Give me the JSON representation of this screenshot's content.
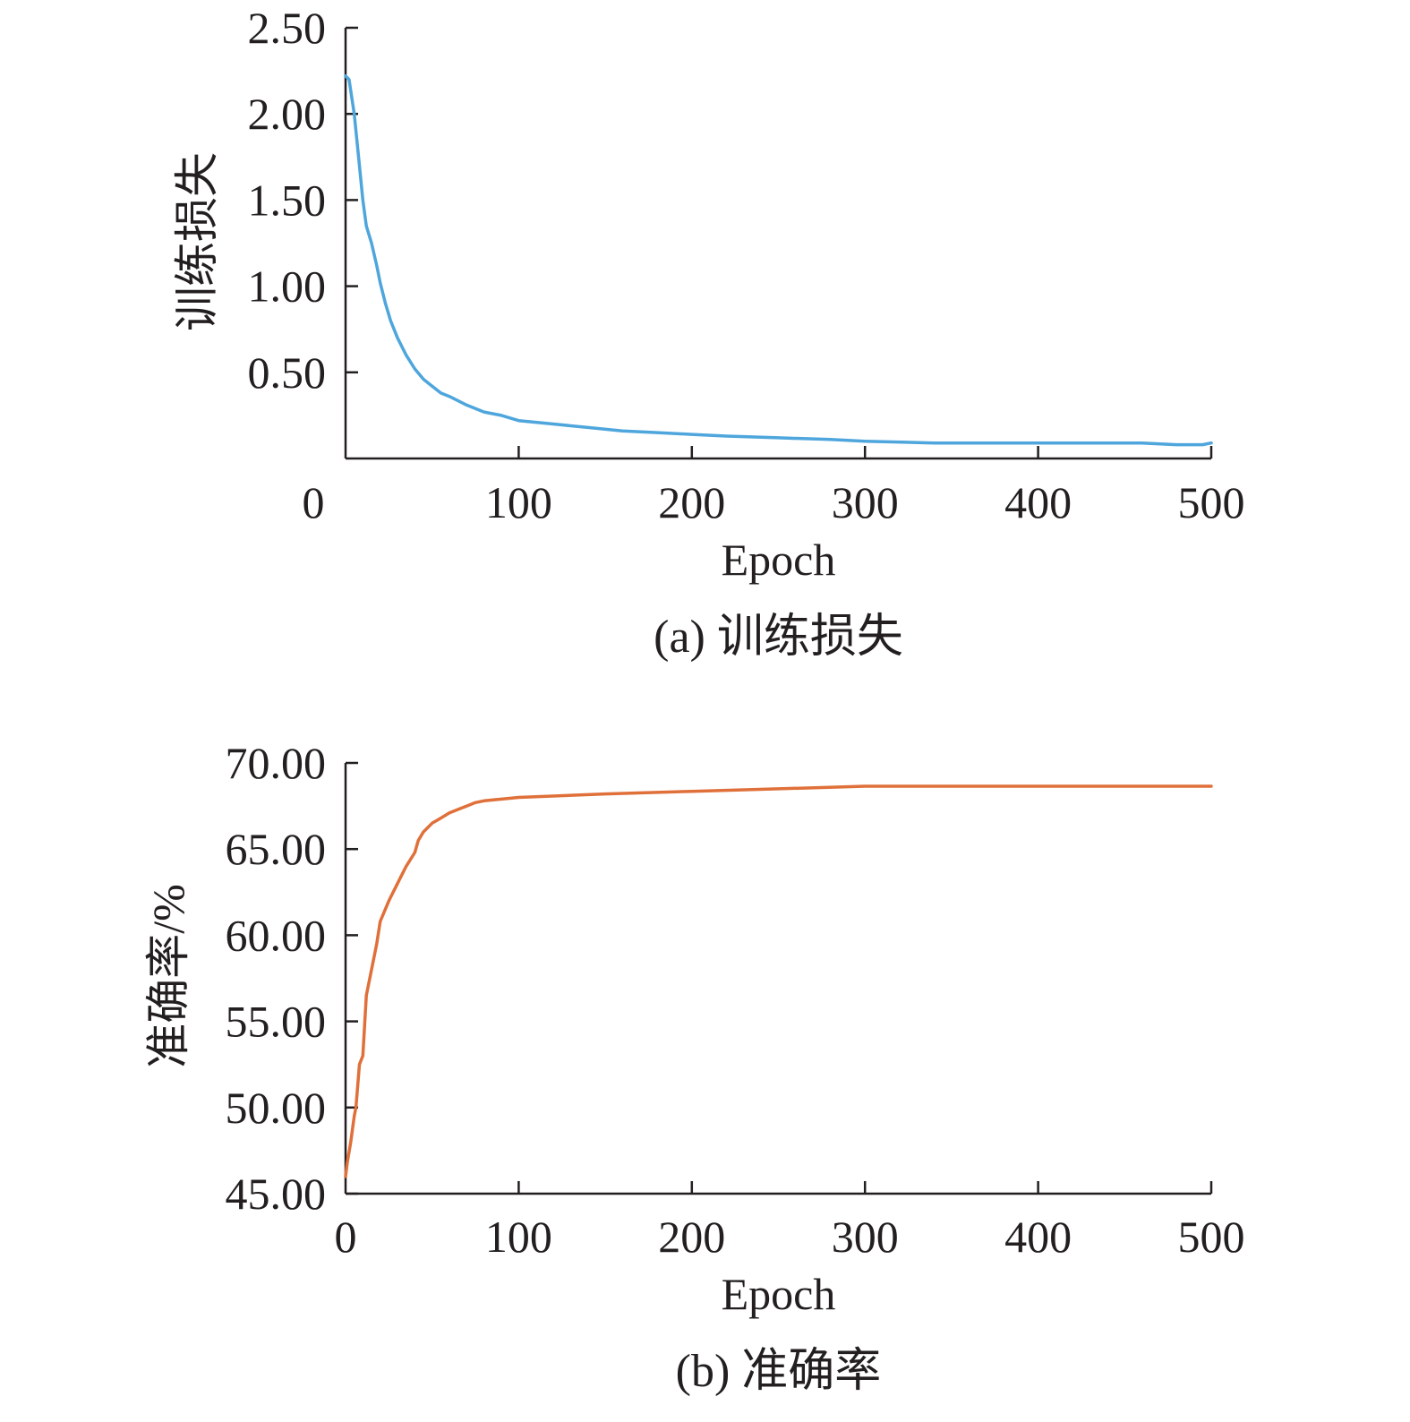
{
  "chart_data": [
    {
      "type": "line",
      "caption": "(a) 训练损失",
      "xlabel": "Epoch",
      "ylabel": "训练损失",
      "xlim": [
        0,
        500
      ],
      "ylim": [
        0,
        2.5
      ],
      "x_ticks": [
        "0",
        "100",
        "200",
        "300",
        "400",
        "500"
      ],
      "y_ticks": [
        "0.50",
        "1.00",
        "1.50",
        "2.00",
        "2.50"
      ],
      "grid": false,
      "series": [
        {
          "color": "#4ea6dc",
          "x": [
            0,
            2,
            5,
            8,
            10,
            12,
            15,
            18,
            20,
            23,
            26,
            30,
            35,
            40,
            45,
            50,
            55,
            60,
            70,
            80,
            90,
            100,
            120,
            140,
            160,
            180,
            200,
            220,
            250,
            280,
            300,
            340,
            380,
            420,
            460,
            480,
            495,
            500
          ],
          "y": [
            2.22,
            2.2,
            2.0,
            1.7,
            1.5,
            1.35,
            1.25,
            1.12,
            1.02,
            0.9,
            0.8,
            0.7,
            0.6,
            0.52,
            0.46,
            0.42,
            0.38,
            0.36,
            0.31,
            0.27,
            0.25,
            0.22,
            0.2,
            0.18,
            0.16,
            0.15,
            0.14,
            0.13,
            0.12,
            0.11,
            0.1,
            0.09,
            0.09,
            0.09,
            0.09,
            0.08,
            0.08,
            0.09
          ]
        }
      ]
    },
    {
      "type": "line",
      "caption": "(b) 准确率",
      "xlabel": "Epoch",
      "ylabel": "准确率/%",
      "xlim": [
        0,
        500
      ],
      "ylim": [
        45,
        70
      ],
      "x_ticks": [
        "0",
        "100",
        "200",
        "300",
        "400",
        "500"
      ],
      "y_ticks": [
        "45.00",
        "50.00",
        "55.00",
        "60.00",
        "65.00",
        "70.00"
      ],
      "grid": false,
      "series": [
        {
          "color": "#e0703a",
          "x": [
            0,
            1,
            3,
            5,
            6,
            8,
            10,
            12,
            15,
            18,
            20,
            25,
            30,
            35,
            40,
            42,
            45,
            50,
            55,
            60,
            65,
            70,
            75,
            80,
            90,
            100,
            150,
            200,
            250,
            300,
            350,
            400,
            450,
            500
          ],
          "y": [
            46.0,
            46.8,
            48.0,
            49.5,
            50.0,
            52.5,
            53.0,
            56.5,
            58.0,
            59.5,
            60.8,
            62.0,
            63.0,
            64.0,
            64.8,
            65.5,
            66.0,
            66.5,
            66.8,
            67.1,
            67.3,
            67.5,
            67.7,
            67.8,
            67.9,
            68.0,
            68.2,
            68.35,
            68.5,
            68.65,
            68.65,
            68.65,
            68.65,
            68.65
          ]
        }
      ]
    }
  ]
}
